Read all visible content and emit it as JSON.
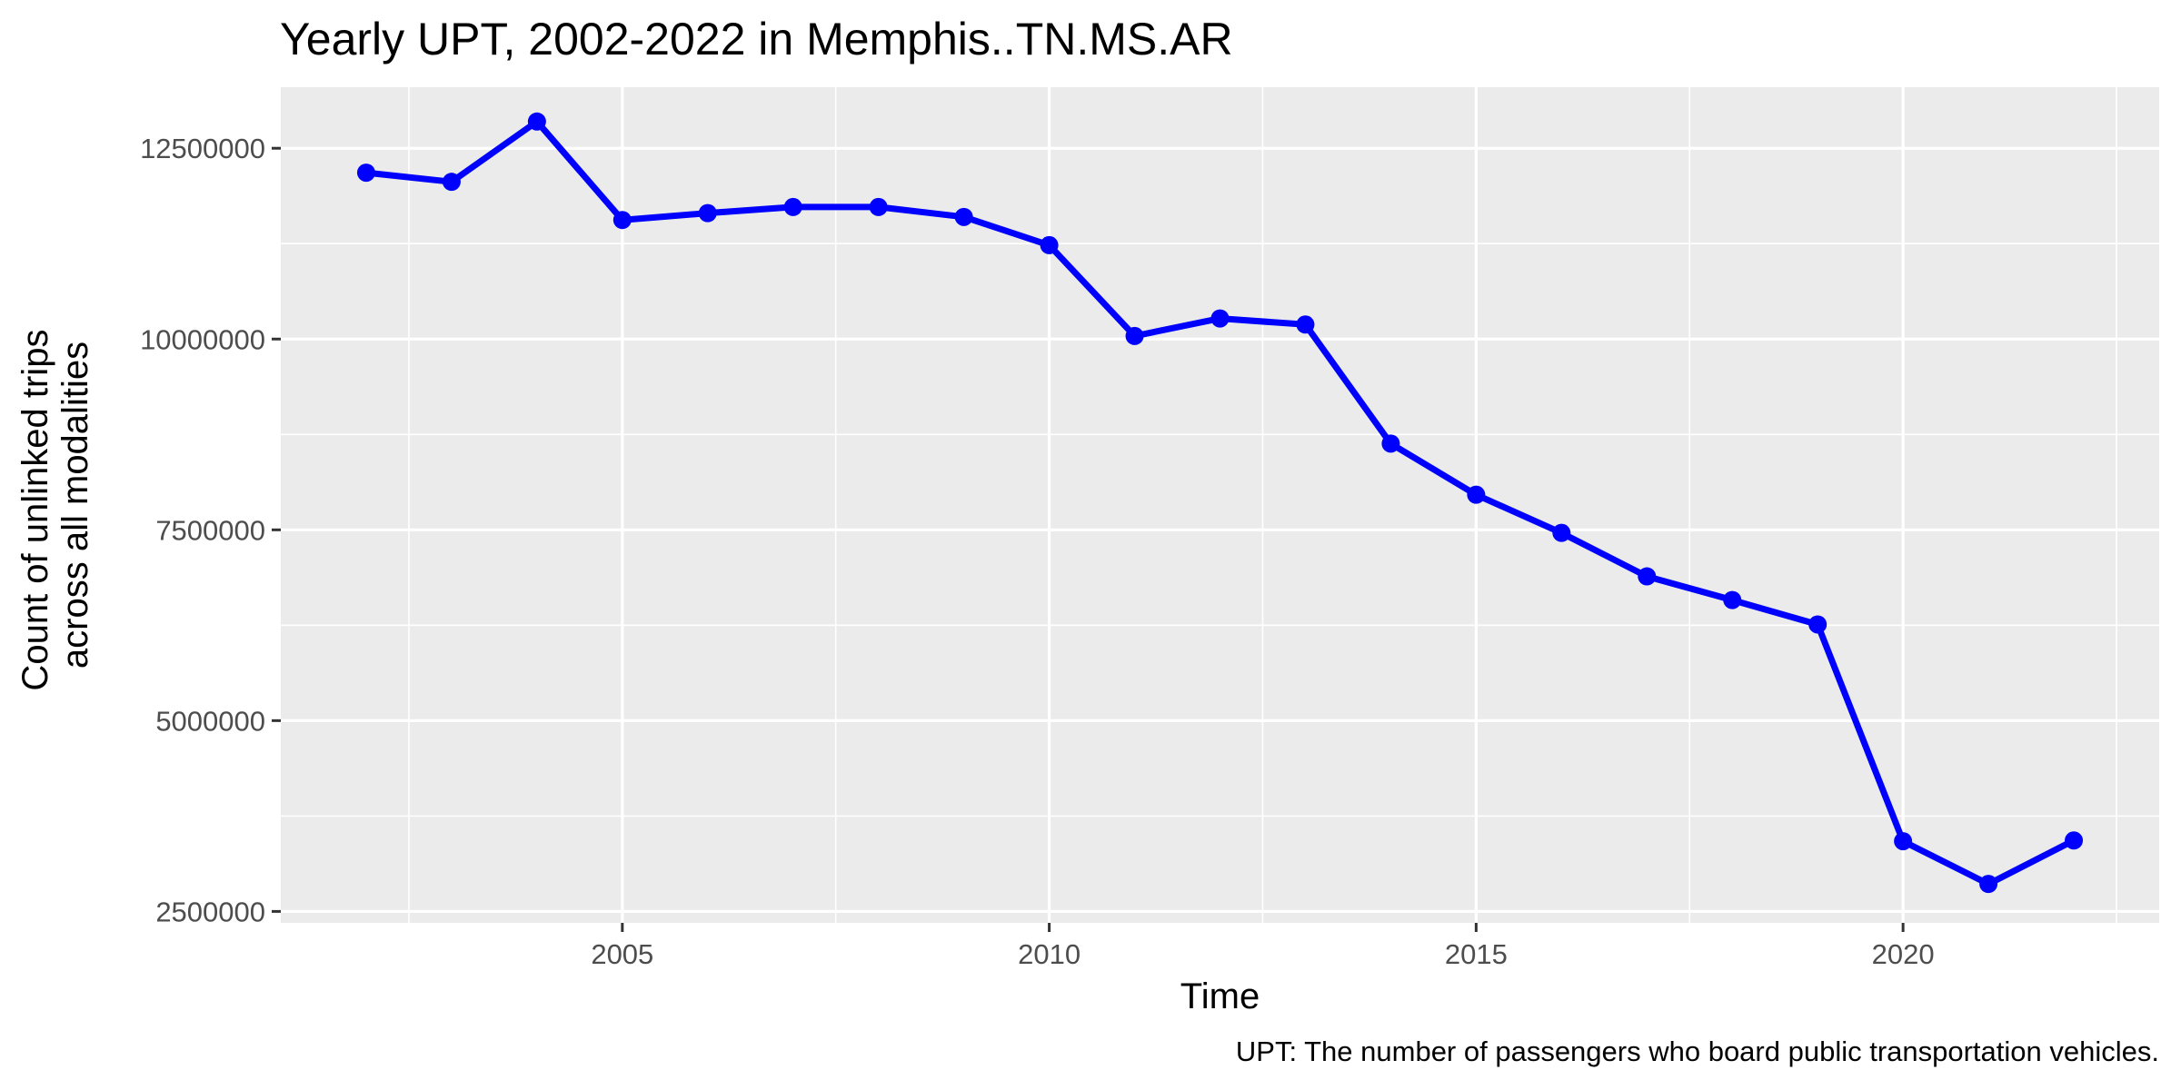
{
  "chart_data": {
    "type": "line",
    "title": "Yearly UPT, 2002-2022 in Memphis..TN.MS.AR",
    "xlabel": "Time",
    "ylabel_lines": [
      "Count of unlinked trips",
      "across all modalities"
    ],
    "caption": "UPT: The number of passengers who board public transportation vehicles.",
    "x": [
      2002,
      2003,
      2004,
      2005,
      2006,
      2007,
      2008,
      2009,
      2010,
      2011,
      2012,
      2013,
      2014,
      2015,
      2016,
      2017,
      2018,
      2019,
      2020,
      2021,
      2022
    ],
    "series": [
      {
        "color": "#0000ff",
        "values": [
          12180000,
          12060000,
          12850000,
          11560000,
          11650000,
          11730000,
          11730000,
          11600000,
          11230000,
          10040000,
          10270000,
          10190000,
          8630000,
          7960000,
          7460000,
          6890000,
          6580000,
          6260000,
          3420000,
          2860000,
          3430000
        ]
      }
    ],
    "xlim": [
      2001,
      2023
    ],
    "ylim": [
      2350000,
      13300000
    ],
    "x_ticks": [
      2005,
      2010,
      2015,
      2020
    ],
    "x_tick_labels": [
      "2005",
      "2010",
      "2015",
      "2020"
    ],
    "y_ticks": [
      2500000,
      5000000,
      7500000,
      10000000,
      12500000
    ],
    "y_tick_labels": [
      "2500000",
      "5000000",
      "7500000",
      "10000000",
      "12500000"
    ],
    "grid": true,
    "legend": "none",
    "panel_background": "#ebebeb"
  }
}
